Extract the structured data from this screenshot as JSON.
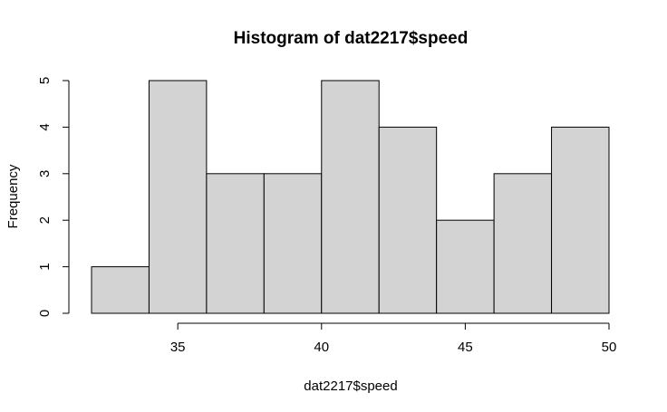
{
  "chart_data": {
    "type": "bar",
    "title": "Histogram of dat2217$speed",
    "xlabel": "dat2217$speed",
    "ylabel": "Frequency",
    "bins": [
      {
        "start": 32,
        "end": 34,
        "count": 1
      },
      {
        "start": 34,
        "end": 36,
        "count": 5
      },
      {
        "start": 36,
        "end": 38,
        "count": 3
      },
      {
        "start": 38,
        "end": 40,
        "count": 3
      },
      {
        "start": 40,
        "end": 42,
        "count": 5
      },
      {
        "start": 42,
        "end": 44,
        "count": 4
      },
      {
        "start": 44,
        "end": 46,
        "count": 2
      },
      {
        "start": 46,
        "end": 48,
        "count": 3
      },
      {
        "start": 48,
        "end": 50,
        "count": 4
      }
    ],
    "xlim": [
      32,
      50
    ],
    "ylim": [
      0,
      5
    ],
    "x_ticks": [
      35,
      40,
      45,
      50
    ],
    "y_ticks": [
      0,
      1,
      2,
      3,
      4,
      5
    ],
    "bar_fill": "#d3d3d3",
    "bar_stroke": "#000000",
    "grid": false
  }
}
